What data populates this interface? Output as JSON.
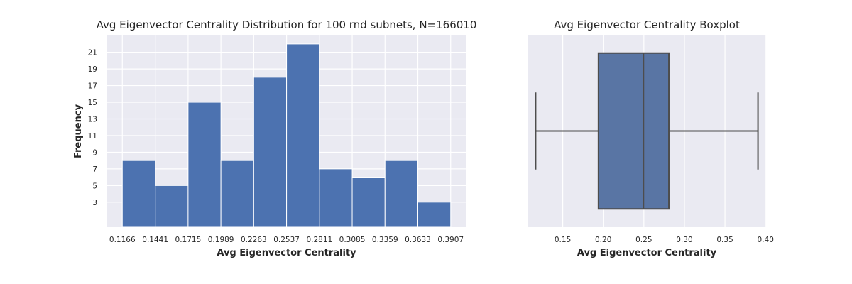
{
  "chart_data": [
    {
      "type": "bar",
      "title": "Avg Eigenvector Centrality Distribution for 100 rnd subnets, N=166010",
      "xlabel": "Avg Eigenvector Centrality",
      "ylabel": "Frequency",
      "bin_edges": [
        0.1166,
        0.1441,
        0.1715,
        0.1989,
        0.2263,
        0.2537,
        0.2811,
        0.3085,
        0.3359,
        0.3633,
        0.3907
      ],
      "x_tick_labels": [
        "0.1166",
        "0.1441",
        "0.1715",
        "0.1989",
        "0.2263",
        "0.2537",
        "0.2811",
        "0.3085",
        "0.3359",
        "0.3633",
        "0.3907"
      ],
      "values": [
        8,
        5,
        15,
        8,
        18,
        22,
        7,
        6,
        8,
        3
      ],
      "y_ticks": [
        3,
        5,
        7,
        9,
        11,
        13,
        15,
        17,
        19,
        21
      ],
      "ylim": [
        0,
        23.1
      ],
      "grid": true,
      "bar_color": "#4c72b0",
      "background_color": "#eaeaf2"
    },
    {
      "type": "box",
      "title": "Avg Eigenvector Centrality Boxplot",
      "xlabel": "Avg Eigenvector Centrality",
      "ylabel": "",
      "x_ticks": [
        0.15,
        0.2,
        0.25,
        0.3,
        0.35,
        0.4
      ],
      "x_tick_labels": [
        "0.15",
        "0.20",
        "0.25",
        "0.30",
        "0.35",
        "0.40"
      ],
      "xlim": [
        0.1066,
        0.4007
      ],
      "whisker_low": 0.1166,
      "q1": 0.194,
      "median": 0.2495,
      "q3": 0.2808,
      "whisker_high": 0.3907,
      "grid": true,
      "box_color": "#5975a4",
      "line_color": "#4d4d4d",
      "background_color": "#eaeaf2"
    }
  ]
}
